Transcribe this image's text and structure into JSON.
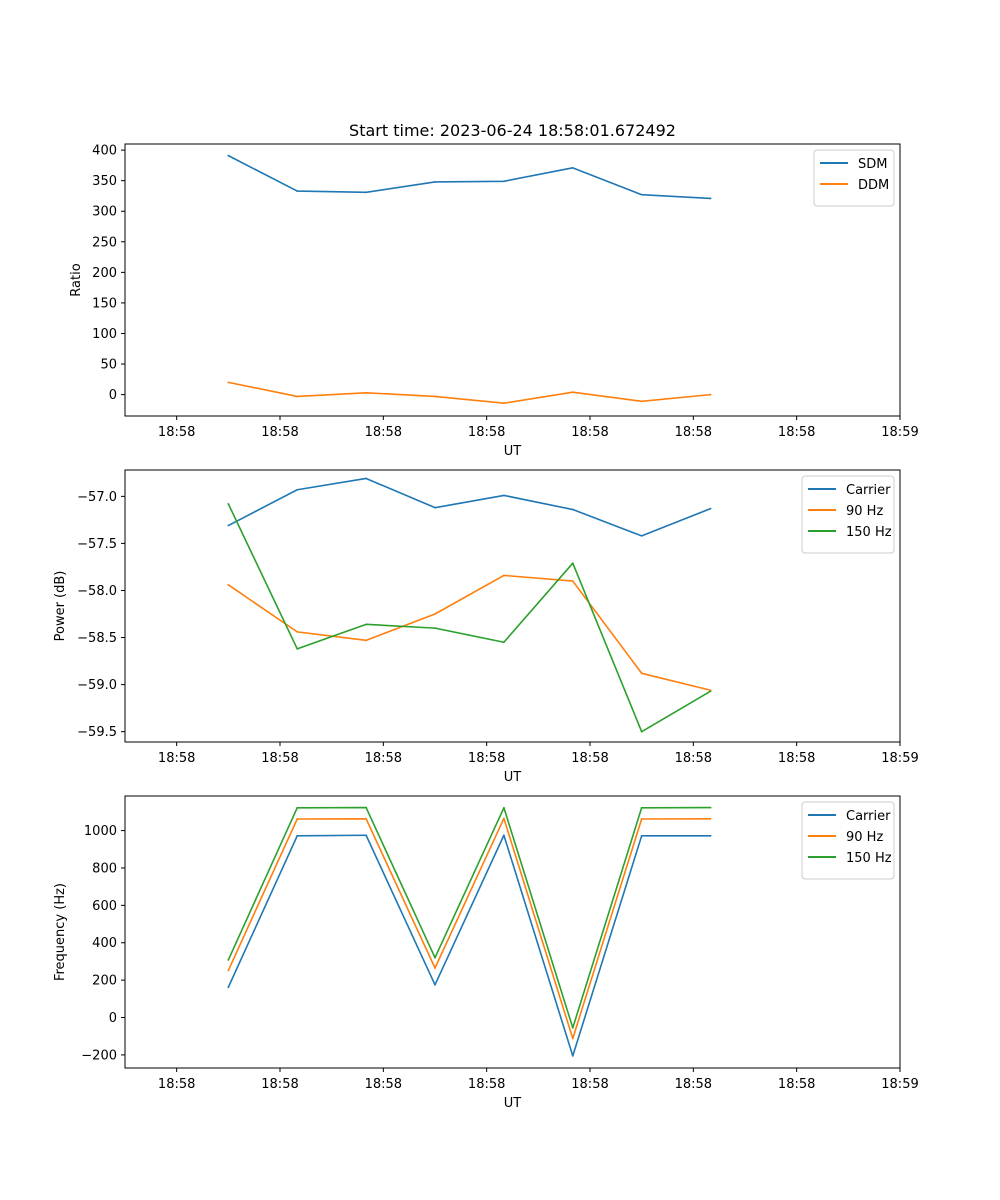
{
  "figure_title": "Start time: 2023-06-24 18:58:01.672492",
  "colors": {
    "blue": "#1f77b4",
    "orange": "#ff7f0e",
    "green": "#2ca02c"
  },
  "chart_data": [
    {
      "type": "line",
      "title": "Start time: 2023-06-24 18:58:01.672492",
      "xlabel": "UT",
      "ylabel": "Ratio",
      "x_tick_labels": [
        "18:58",
        "18:58",
        "18:58",
        "18:58",
        "18:58",
        "18:58",
        "18:58",
        "18:59"
      ],
      "x_tick_index": [
        0,
        1.5,
        3,
        4.5,
        6,
        7.5,
        9,
        10.5
      ],
      "xlim": [
        -0.75,
        10.5
      ],
      "ylim": [
        -35,
        410
      ],
      "yticks": [
        0,
        50,
        100,
        150,
        200,
        250,
        300,
        350,
        400
      ],
      "y_tick_labels": [
        "0",
        "50",
        "100",
        "150",
        "200",
        "250",
        "300",
        "350",
        "400"
      ],
      "legend": "top-right",
      "series": [
        {
          "name": "SDM",
          "color": "#1f77b4",
          "x": [
            0.75,
            1.75,
            2.75,
            3.75,
            4.75,
            5.75,
            6.75,
            7.75
          ],
          "values": [
            391,
            333,
            331,
            348,
            349,
            371,
            327,
            321
          ]
        },
        {
          "name": "DDM",
          "color": "#ff7f0e",
          "x": [
            0.75,
            1.75,
            2.75,
            3.75,
            4.75,
            5.75,
            6.75,
            7.75
          ],
          "values": [
            20,
            -3,
            3,
            -3,
            -14,
            4,
            -11,
            0
          ]
        }
      ]
    },
    {
      "type": "line",
      "xlabel": "UT",
      "ylabel": "Power (dB)",
      "x_tick_labels": [
        "18:58",
        "18:58",
        "18:58",
        "18:58",
        "18:58",
        "18:58",
        "18:58",
        "18:59"
      ],
      "x_tick_index": [
        0,
        1.5,
        3,
        4.5,
        6,
        7.5,
        9,
        10.5
      ],
      "xlim": [
        -0.75,
        10.5
      ],
      "ylim": [
        -59.61,
        -56.72
      ],
      "yticks": [
        -59.5,
        -59.0,
        -58.5,
        -58.0,
        -57.5,
        -57.0
      ],
      "y_tick_labels": [
        "−59.5",
        "−59.0",
        "−58.5",
        "−58.0",
        "−57.5",
        "−57.0"
      ],
      "legend": "top-right",
      "series": [
        {
          "name": "Carrier",
          "color": "#1f77b4",
          "x": [
            0.75,
            1.75,
            2.75,
            3.75,
            4.75,
            5.75,
            6.75,
            7.75
          ],
          "values": [
            -57.31,
            -56.93,
            -56.81,
            -57.12,
            -56.99,
            -57.14,
            -57.42,
            -57.13
          ]
        },
        {
          "name": "90 Hz",
          "color": "#ff7f0e",
          "x": [
            0.75,
            1.75,
            2.75,
            3.75,
            4.75,
            5.75,
            6.75,
            7.75
          ],
          "values": [
            -57.94,
            -58.44,
            -58.53,
            -58.25,
            -57.84,
            -57.9,
            -58.88,
            -59.06
          ]
        },
        {
          "name": "150 Hz",
          "color": "#2ca02c",
          "x": [
            0.75,
            1.75,
            2.75,
            3.75,
            4.75,
            5.75,
            6.75,
            7.75
          ],
          "values": [
            -57.08,
            -58.62,
            -58.36,
            -58.4,
            -58.55,
            -57.71,
            -59.5,
            -59.07
          ]
        }
      ]
    },
    {
      "type": "line",
      "xlabel": "UT",
      "ylabel": "Frequency (Hz)",
      "x_tick_labels": [
        "18:58",
        "18:58",
        "18:58",
        "18:58",
        "18:58",
        "18:58",
        "18:58",
        "18:59"
      ],
      "x_tick_index": [
        0,
        1.5,
        3,
        4.5,
        6,
        7.5,
        9,
        10.5
      ],
      "xlim": [
        -0.75,
        10.5
      ],
      "ylim": [
        -270,
        1185
      ],
      "yticks": [
        -200,
        0,
        200,
        400,
        600,
        800,
        1000
      ],
      "y_tick_labels": [
        "−200",
        "0",
        "200",
        "400",
        "600",
        "800",
        "1000"
      ],
      "legend": "top-right",
      "series": [
        {
          "name": "Carrier",
          "color": "#1f77b4",
          "x": [
            0.75,
            1.75,
            2.75,
            3.75,
            4.75,
            5.75,
            6.75,
            7.75
          ],
          "values": [
            162,
            972,
            975,
            175,
            975,
            -205,
            972,
            972
          ]
        },
        {
          "name": "90 Hz",
          "color": "#ff7f0e",
          "x": [
            0.75,
            1.75,
            2.75,
            3.75,
            4.75,
            5.75,
            6.75,
            7.75
          ],
          "values": [
            252,
            1062,
            1063,
            265,
            1065,
            -112,
            1062,
            1063
          ]
        },
        {
          "name": "150 Hz",
          "color": "#2ca02c",
          "x": [
            0.75,
            1.75,
            2.75,
            3.75,
            4.75,
            5.75,
            6.75,
            7.75
          ],
          "values": [
            308,
            1122,
            1123,
            320,
            1122,
            -55,
            1122,
            1123
          ]
        }
      ]
    }
  ]
}
